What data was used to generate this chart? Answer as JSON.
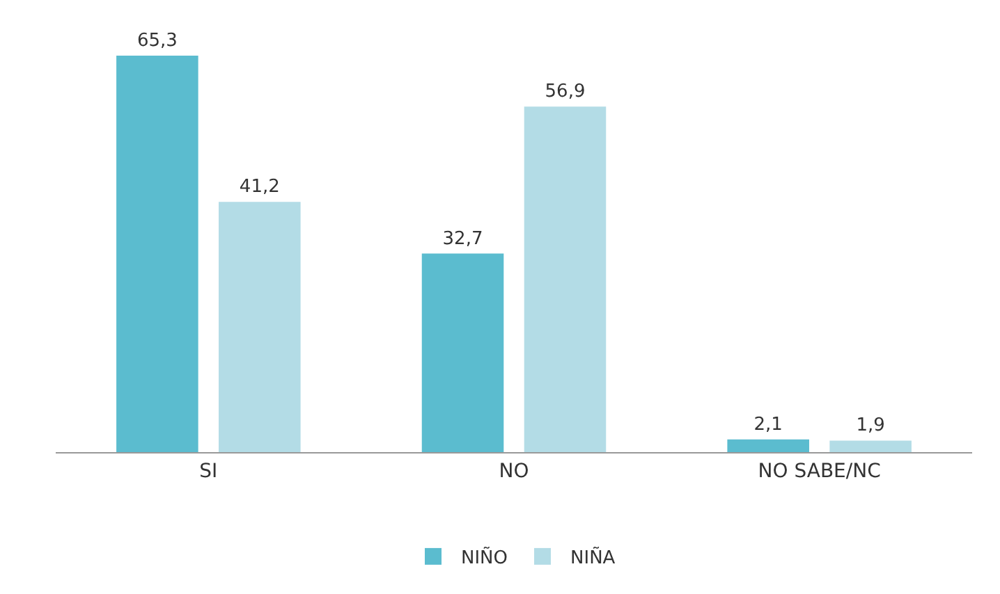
{
  "chart_data": {
    "type": "bar",
    "categories": [
      "SI",
      "NO",
      "NO SABE/NC"
    ],
    "series": [
      {
        "name": "NIÑO",
        "color": "#5bbccf",
        "values": [
          65.3,
          32.7,
          2.1
        ],
        "value_labels": [
          "65,3",
          "32,7",
          "2,1"
        ]
      },
      {
        "name": "NIÑA",
        "color": "#b3dce6",
        "values": [
          41.2,
          56.9,
          1.9
        ],
        "value_labels": [
          "41,2",
          "56,9",
          "1,9"
        ]
      }
    ],
    "grid": false,
    "legend": "bottom"
  }
}
